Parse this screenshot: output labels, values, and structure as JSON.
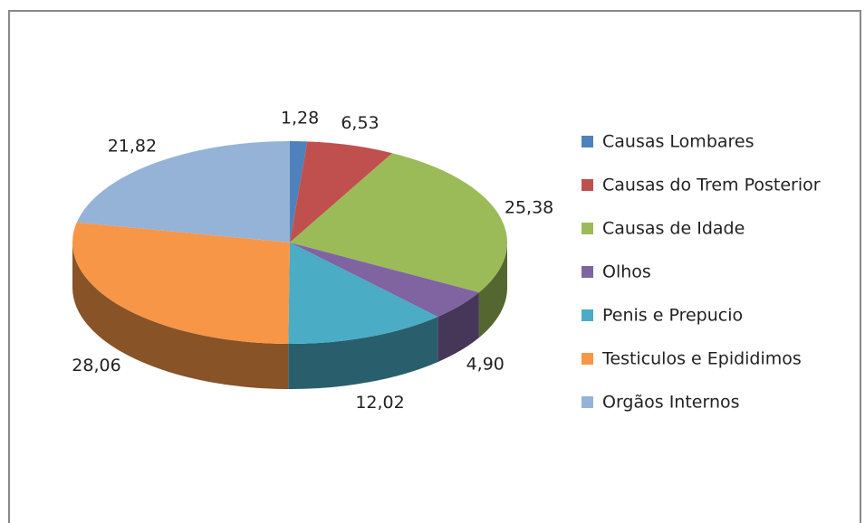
{
  "chart_data": {
    "type": "pie",
    "categories": [
      "Causas Lombares",
      "Causas do Trem Posterior",
      "Causas de Idade",
      "Olhos",
      "Penis e Prepucio",
      "Testiculos e Epididimos",
      "Orgãos Internos"
    ],
    "values": [
      1.28,
      6.53,
      25.38,
      4.9,
      12.02,
      28.06,
      21.82
    ],
    "value_labels": [
      "1,28",
      "6,53",
      "25,38",
      "4,90",
      "12,02",
      "28,06",
      "21,82"
    ],
    "colors": [
      "#4f81bd",
      "#c0504d",
      "#9bbb59",
      "#8064a2",
      "#4bacc6",
      "#f79646",
      "#95b3d7"
    ],
    "legend": "right"
  }
}
